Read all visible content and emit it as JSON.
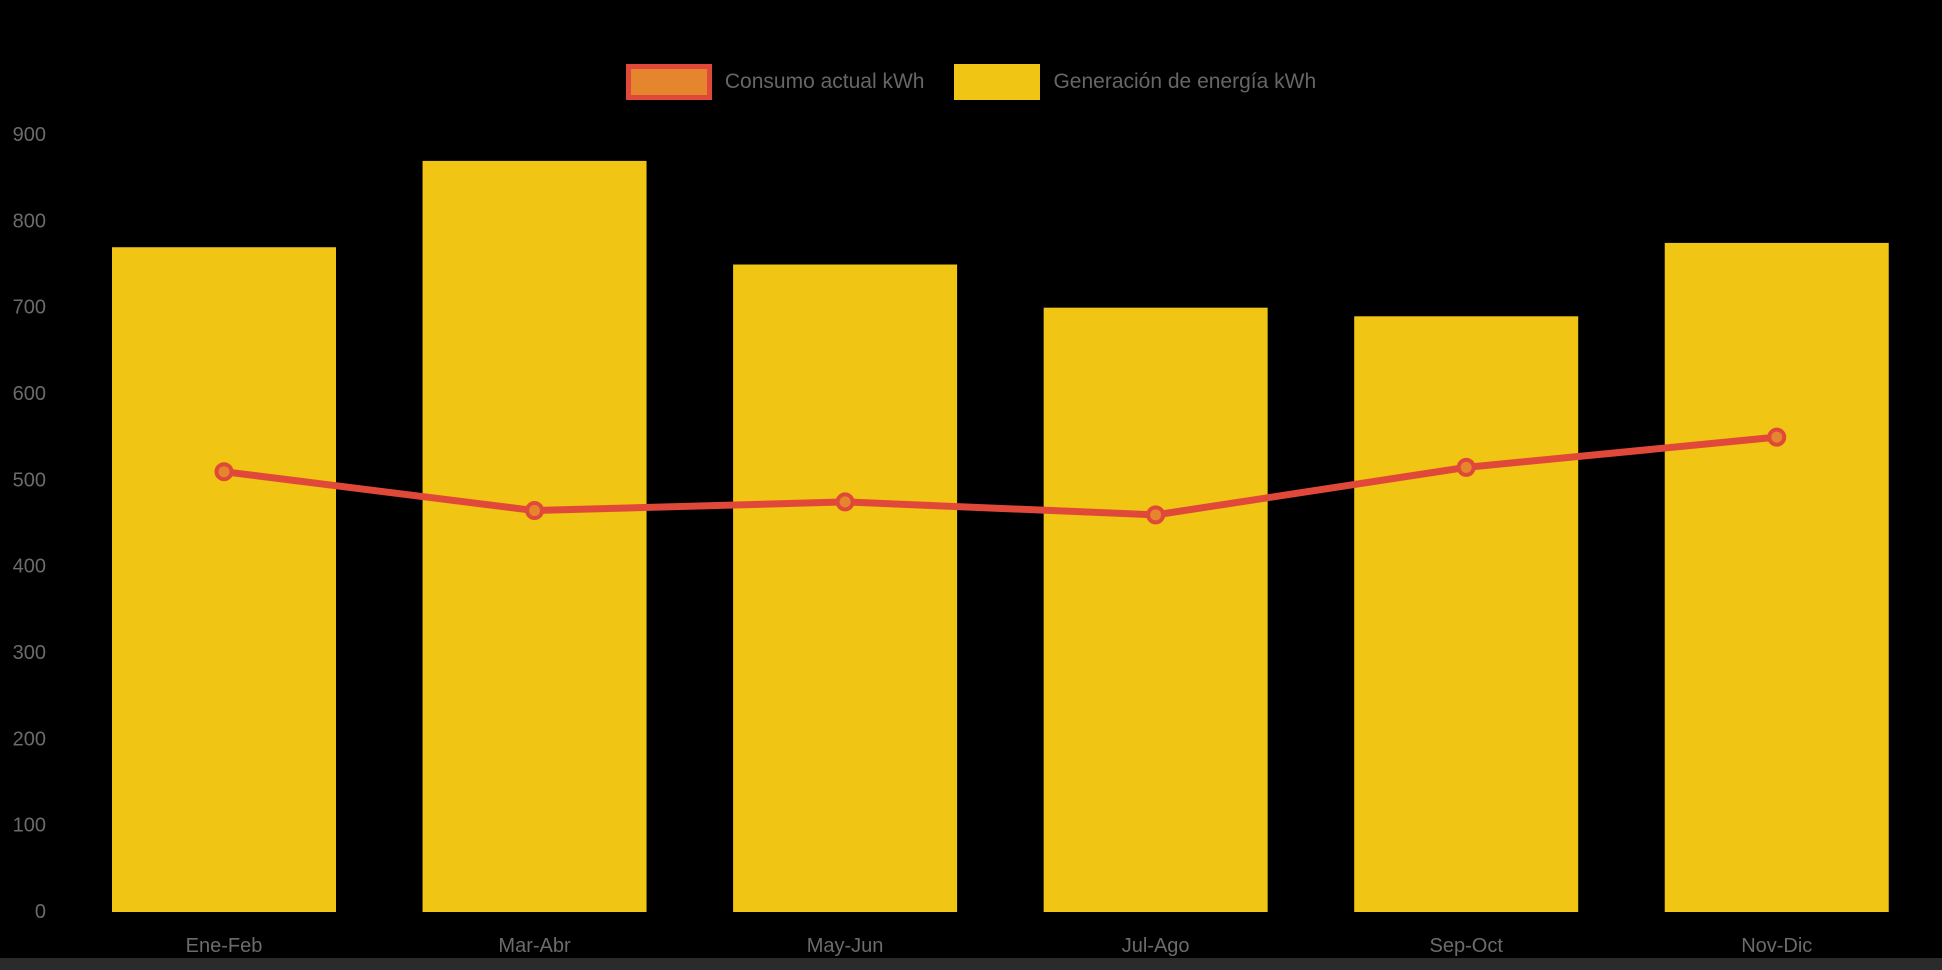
{
  "background_color": "#000000",
  "legend": {
    "items": [
      {
        "label": "Consumo actual kWh",
        "swatch_fill": "#e5862e",
        "swatch_border": "#e0493a"
      },
      {
        "label": "Generación de energía kWh",
        "swatch_fill": "#f0c513",
        "swatch_border": ""
      }
    ]
  },
  "colors": {
    "bar": "#f0c513",
    "line": "#e0493a",
    "marker_fill": "#e5862e",
    "axis_text": "#6b6b6b",
    "bottom_strip": "#2b2b2b"
  },
  "chart_data": {
    "type": "bar",
    "title": "",
    "xlabel": "",
    "ylabel": "",
    "categories": [
      "Ene-Feb",
      "Mar-Abr",
      "May-Jun",
      "Jul-Ago",
      "Sep-Oct",
      "Nov-Dic"
    ],
    "series": [
      {
        "name": "Generación de energía kWh",
        "type": "bar",
        "color": "#f0c513",
        "values": [
          770,
          870,
          750,
          700,
          690,
          775
        ]
      },
      {
        "name": "Consumo actual kWh",
        "type": "line",
        "color": "#e0493a",
        "marker_fill": "#e5862e",
        "values": [
          510,
          465,
          475,
          460,
          515,
          550
        ]
      }
    ],
    "ylim": [
      0,
      900
    ],
    "y_tick_labels": [
      0,
      100,
      200,
      300,
      400,
      500,
      600,
      700,
      800,
      900
    ],
    "grid": false,
    "legend_position": "top-center",
    "background": "#000000"
  }
}
